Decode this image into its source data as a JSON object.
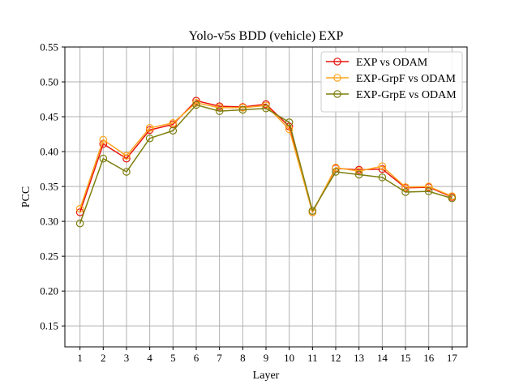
{
  "chart_data": {
    "type": "line",
    "title": "Yolo-v5s BDD (vehicle) EXP",
    "xlabel": "Layer",
    "ylabel": "PCC",
    "x": [
      1,
      2,
      3,
      4,
      5,
      6,
      7,
      8,
      9,
      10,
      11,
      12,
      13,
      14,
      15,
      16,
      17
    ],
    "ylim": [
      0.12,
      0.55
    ],
    "yticks": [
      0.15,
      0.2,
      0.25,
      0.3,
      0.35,
      0.4,
      0.45,
      0.5,
      0.55
    ],
    "ytick_labels": [
      "0.15",
      "0.20",
      "0.25",
      "0.30",
      "0.35",
      "0.40",
      "0.45",
      "0.50",
      "0.55"
    ],
    "grid": true,
    "legend_position": "top-right",
    "series": [
      {
        "name": "EXP vs ODAM",
        "color": "#e8140c",
        "values": [
          0.313,
          0.411,
          0.39,
          0.431,
          0.439,
          0.473,
          0.465,
          0.464,
          0.468,
          0.436,
          0.313,
          0.376,
          0.374,
          0.375,
          0.348,
          0.349,
          0.335
        ]
      },
      {
        "name": "EXP-GrpF vs ODAM",
        "color": "#ffa51f",
        "values": [
          0.318,
          0.417,
          0.394,
          0.434,
          0.441,
          0.47,
          0.463,
          0.463,
          0.466,
          0.432,
          0.313,
          0.377,
          0.372,
          0.379,
          0.349,
          0.35,
          0.336
        ]
      },
      {
        "name": "EXP-GrpE vs ODAM",
        "color": "#7f7f0f",
        "values": [
          0.297,
          0.39,
          0.371,
          0.419,
          0.43,
          0.467,
          0.458,
          0.46,
          0.462,
          0.442,
          0.315,
          0.371,
          0.367,
          0.363,
          0.342,
          0.343,
          0.333
        ]
      }
    ]
  }
}
